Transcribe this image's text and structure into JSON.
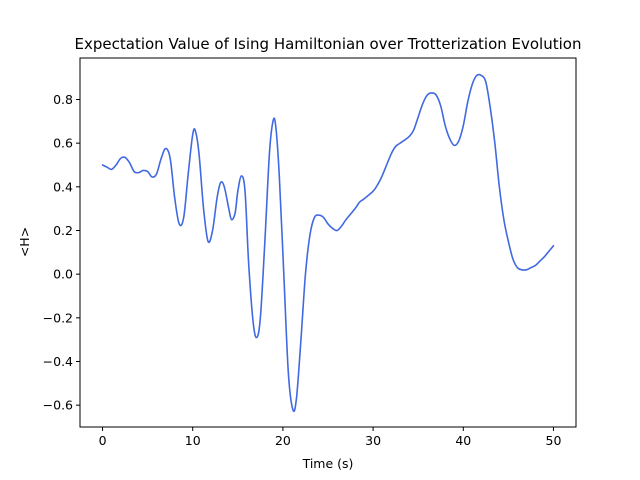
{
  "chart_data": {
    "type": "line",
    "title": "Expectation Value of Ising Hamiltonian over Trotterization Evolution",
    "xlabel": "Time (s)",
    "ylabel": "<H>",
    "xlim": [
      -2.5,
      52.5
    ],
    "ylim": [
      -0.7,
      0.99
    ],
    "xticks": [
      0,
      10,
      20,
      30,
      40,
      50
    ],
    "yticks": [
      -0.6,
      -0.4,
      -0.2,
      0.0,
      0.2,
      0.4,
      0.6,
      0.8
    ],
    "grid": false,
    "legend": "none",
    "series": [
      {
        "color": "#4169e1",
        "points": [
          [
            0,
            0.5
          ],
          [
            0.5,
            0.49
          ],
          [
            1.0,
            0.48
          ],
          [
            1.5,
            0.5
          ],
          [
            2.0,
            0.53
          ],
          [
            2.5,
            0.535
          ],
          [
            3.0,
            0.51
          ],
          [
            3.5,
            0.47
          ],
          [
            4.0,
            0.465
          ],
          [
            4.5,
            0.475
          ],
          [
            5.0,
            0.47
          ],
          [
            5.5,
            0.445
          ],
          [
            6.0,
            0.46
          ],
          [
            6.5,
            0.53
          ],
          [
            7.0,
            0.575
          ],
          [
            7.5,
            0.53
          ],
          [
            8.0,
            0.35
          ],
          [
            8.5,
            0.23
          ],
          [
            9.0,
            0.26
          ],
          [
            9.5,
            0.46
          ],
          [
            10.0,
            0.64
          ],
          [
            10.3,
            0.655
          ],
          [
            10.7,
            0.55
          ],
          [
            11.2,
            0.3
          ],
          [
            11.7,
            0.15
          ],
          [
            12.2,
            0.2
          ],
          [
            12.7,
            0.35
          ],
          [
            13.1,
            0.42
          ],
          [
            13.5,
            0.4
          ],
          [
            14.0,
            0.3
          ],
          [
            14.3,
            0.25
          ],
          [
            14.7,
            0.28
          ],
          [
            15.0,
            0.38
          ],
          [
            15.4,
            0.45
          ],
          [
            15.8,
            0.38
          ],
          [
            16.2,
            0.05
          ],
          [
            16.7,
            -0.22
          ],
          [
            17.1,
            -0.29
          ],
          [
            17.5,
            -0.2
          ],
          [
            18.0,
            0.15
          ],
          [
            18.5,
            0.55
          ],
          [
            18.9,
            0.7
          ],
          [
            19.2,
            0.68
          ],
          [
            19.6,
            0.45
          ],
          [
            20.1,
            0.0
          ],
          [
            20.6,
            -0.45
          ],
          [
            21.1,
            -0.62
          ],
          [
            21.5,
            -0.57
          ],
          [
            22.0,
            -0.3
          ],
          [
            22.5,
            0.0
          ],
          [
            23.0,
            0.18
          ],
          [
            23.5,
            0.26
          ],
          [
            24.0,
            0.27
          ],
          [
            24.5,
            0.26
          ],
          [
            25.0,
            0.23
          ],
          [
            25.5,
            0.21
          ],
          [
            26.0,
            0.2
          ],
          [
            26.5,
            0.22
          ],
          [
            27.0,
            0.25
          ],
          [
            28.0,
            0.3
          ],
          [
            28.5,
            0.33
          ],
          [
            29.0,
            0.345
          ],
          [
            30.0,
            0.38
          ],
          [
            30.5,
            0.41
          ],
          [
            31.0,
            0.45
          ],
          [
            32.0,
            0.55
          ],
          [
            32.5,
            0.585
          ],
          [
            33.0,
            0.6
          ],
          [
            34.0,
            0.63
          ],
          [
            34.5,
            0.66
          ],
          [
            35.0,
            0.72
          ],
          [
            35.5,
            0.78
          ],
          [
            36.0,
            0.82
          ],
          [
            36.5,
            0.83
          ],
          [
            37.0,
            0.82
          ],
          [
            37.5,
            0.77
          ],
          [
            38.0,
            0.68
          ],
          [
            38.5,
            0.62
          ],
          [
            39.0,
            0.59
          ],
          [
            39.5,
            0.61
          ],
          [
            40.0,
            0.68
          ],
          [
            40.5,
            0.79
          ],
          [
            41.0,
            0.87
          ],
          [
            41.5,
            0.91
          ],
          [
            42.0,
            0.91
          ],
          [
            42.5,
            0.88
          ],
          [
            43.0,
            0.76
          ],
          [
            43.5,
            0.6
          ],
          [
            44.0,
            0.4
          ],
          [
            44.5,
            0.25
          ],
          [
            45.0,
            0.15
          ],
          [
            45.5,
            0.07
          ],
          [
            46.0,
            0.03
          ],
          [
            46.5,
            0.02
          ],
          [
            47.0,
            0.02
          ],
          [
            47.5,
            0.03
          ],
          [
            48.0,
            0.04
          ],
          [
            48.5,
            0.06
          ],
          [
            49.0,
            0.08
          ],
          [
            49.5,
            0.105
          ],
          [
            50.0,
            0.13
          ]
        ]
      }
    ]
  }
}
